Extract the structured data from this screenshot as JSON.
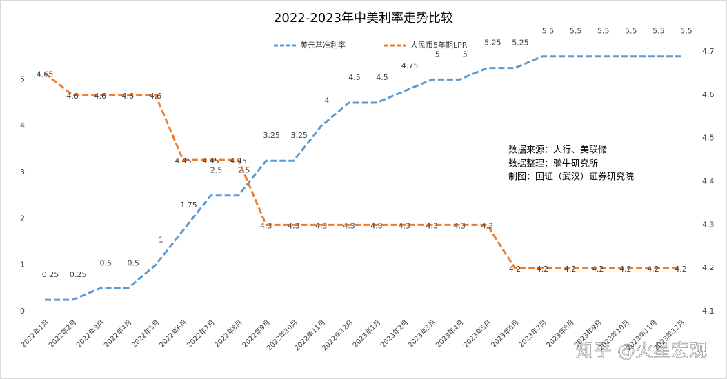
{
  "chart_data": {
    "type": "line",
    "title": "2022-2023年中美利率走势比较",
    "categories": [
      "2022年1月",
      "2022年2月",
      "2022年3月",
      "2022年4月",
      "2022年5月",
      "2022年6月",
      "2022年7月",
      "2022年8月",
      "2022年9月",
      "2022年10月",
      "2022年11月",
      "2022年12月",
      "2023年1月",
      "2023年2月",
      "2023年3月",
      "2023年4月",
      "2023年5月",
      "2023年6月",
      "2023年7月",
      "2023年8月",
      "2023年9月",
      "2023年10月",
      "2023年11月",
      "2023年12月"
    ],
    "series": [
      {
        "name": "美元基准利率",
        "color": "#5b9bd5",
        "values": [
          0.25,
          0.25,
          0.5,
          0.5,
          1,
          1.75,
          2.5,
          2.5,
          3.25,
          3.25,
          4,
          4.5,
          4.5,
          4.75,
          5,
          5,
          5.25,
          5.25,
          5.5,
          5.5,
          5.5,
          5.5,
          5.5,
          5.5
        ]
      },
      {
        "name": "人民币5年期LPR",
        "color": "#ed7d31",
        "axis": "y2",
        "values": [
          4.65,
          4.6,
          4.6,
          4.6,
          4.6,
          4.45,
          4.45,
          4.45,
          4.3,
          4.3,
          4.3,
          4.3,
          4.3,
          4.3,
          4.3,
          4.3,
          4.3,
          4.2,
          4.2,
          4.2,
          4.2,
          4.2,
          4.2,
          4.2
        ]
      }
    ],
    "ylim": [
      0,
      5.6
    ],
    "yticks": [
      0,
      1,
      2,
      3,
      4,
      5
    ],
    "y2lim": [
      4.1,
      4.7
    ],
    "y2ticks": [
      4.1,
      4.2,
      4.3,
      4.4,
      4.5,
      4.6,
      4.7
    ],
    "grid": false,
    "legend": "top",
    "annotations": [
      "数据来源：人行、美联储",
      "数据整理：骑牛研究所",
      "制图：国证（武汉）证券研究院"
    ],
    "watermark": "知乎 @火星宏观"
  }
}
